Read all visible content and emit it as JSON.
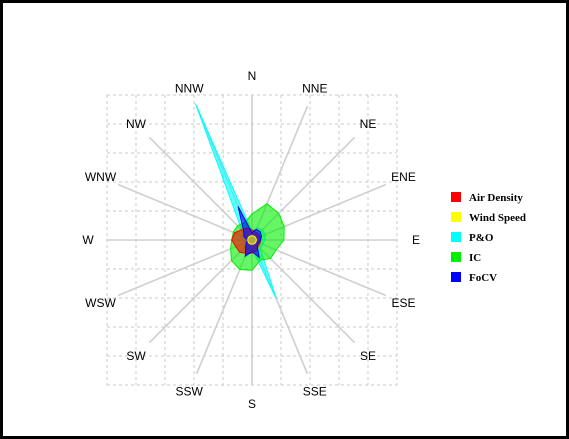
{
  "chart_data": {
    "type": "radar",
    "subtype": "wind-rose",
    "title": "",
    "directions": [
      "N",
      "NNE",
      "NE",
      "ENE",
      "E",
      "ESE",
      "SE",
      "SSE",
      "S",
      "SSW",
      "SW",
      "WSW",
      "W",
      "WNW",
      "NW",
      "NNW"
    ],
    "legend_position": "right",
    "grid": true,
    "rlim": [
      0,
      1
    ],
    "series": [
      {
        "name": "Air Density",
        "color": "#ff0000",
        "values": [
          0.07,
          0.06,
          0.06,
          0.06,
          0.06,
          0.06,
          0.06,
          0.08,
          0.09,
          0.1,
          0.12,
          0.12,
          0.14,
          0.13,
          0.1,
          0.09
        ]
      },
      {
        "name": "Wind Speed",
        "color": "#ffff00",
        "values": [
          0.03,
          0.03,
          0.03,
          0.03,
          0.03,
          0.03,
          0.03,
          0.03,
          0.03,
          0.03,
          0.03,
          0.03,
          0.03,
          0.03,
          0.03,
          0.03
        ]
      },
      {
        "name": "P&O",
        "color": "#00ffff",
        "values": [
          0.06,
          0.09,
          0.1,
          0.1,
          0.09,
          0.08,
          0.08,
          0.44,
          0.06,
          0.08,
          0.07,
          0.05,
          0.06,
          0.07,
          0.1,
          1.02
        ]
      },
      {
        "name": "IC",
        "color": "#00ee00",
        "values": [
          0.18,
          0.27,
          0.26,
          0.24,
          0.22,
          0.18,
          0.18,
          0.15,
          0.21,
          0.22,
          0.2,
          0.16,
          0.14,
          0.14,
          0.14,
          0.13
        ]
      },
      {
        "name": "FoCV",
        "color": "#0000ff",
        "values": [
          0.05,
          0.08,
          0.08,
          0.07,
          0.06,
          0.05,
          0.05,
          0.13,
          0.08,
          0.12,
          0.06,
          0.04,
          0.03,
          0.06,
          0.08,
          0.25
        ]
      }
    ]
  }
}
